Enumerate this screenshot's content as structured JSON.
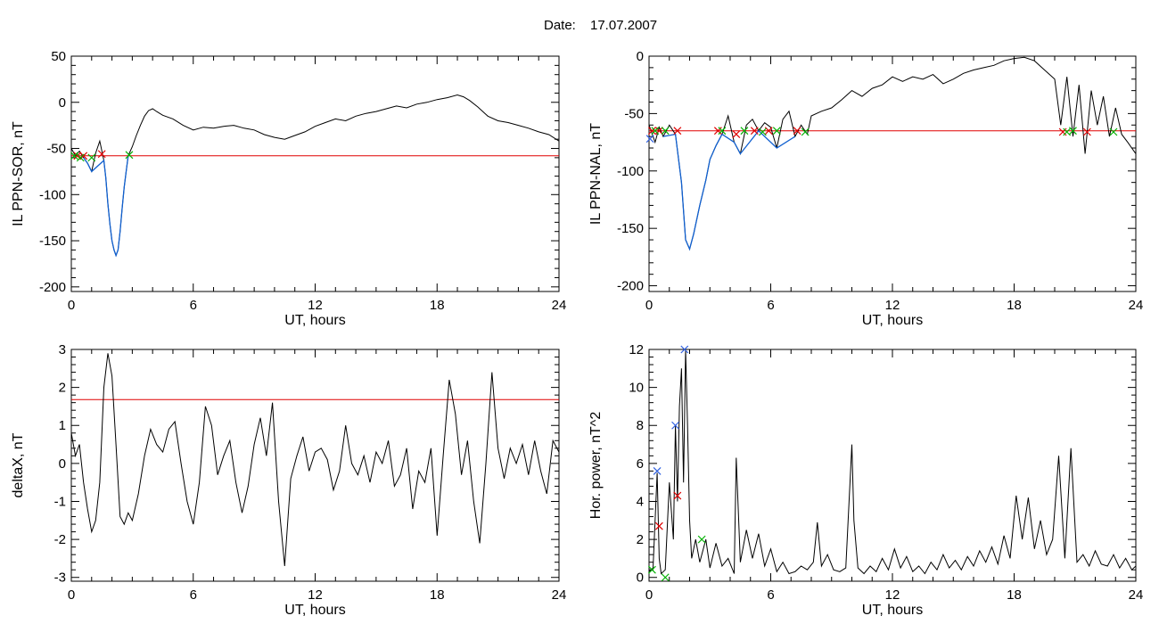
{
  "header": {
    "date_label": "Date:",
    "date_value": "17.07.2007"
  },
  "colors": {
    "trace": "#000000",
    "threshold": "#e00000",
    "highlight": "#1060d0",
    "marker_red": "#e00000",
    "marker_green": "#00b000",
    "marker_blue": "#3060e0"
  },
  "chart_data": [
    {
      "id": "ppn-sor",
      "type": "line",
      "title": "",
      "xlabel": "UT, hours",
      "ylabel": "IL PPN-SOR, nT",
      "xlim": [
        0,
        24
      ],
      "ylim": [
        -205,
        50
      ],
      "xticks": [
        0,
        6,
        12,
        18,
        24
      ],
      "yticks": [
        -200,
        -150,
        -100,
        -50,
        0,
        50
      ],
      "threshold": -58,
      "highlight_range": [
        0.3,
        2.8
      ],
      "series": [
        {
          "x": [
            0,
            0.2,
            0.4,
            0.6,
            0.8,
            1.0,
            1.2,
            1.4,
            1.6,
            1.7,
            1.8,
            1.9,
            2.0,
            2.1,
            2.2,
            2.3,
            2.4,
            2.5,
            2.6,
            2.7,
            2.8,
            3.0,
            3.2,
            3.4,
            3.6,
            3.8,
            4.0,
            4.2,
            4.5,
            5.0,
            5.5,
            6.0,
            6.5,
            7.0,
            7.5,
            8.0,
            8.5,
            9.0,
            9.5,
            10.0,
            10.5,
            11.0,
            11.5,
            12.0,
            12.5,
            13.0,
            13.5,
            14.0,
            14.5,
            15.0,
            15.5,
            16.0,
            16.5,
            17.0,
            17.5,
            18.0,
            18.5,
            19.0,
            19.3,
            19.6,
            20.0,
            20.5,
            21.0,
            21.5,
            22.0,
            22.5,
            23.0,
            23.5,
            24.0
          ],
          "values": [
            -50,
            -58,
            -53,
            -60,
            -66,
            -75,
            -55,
            -42,
            -63,
            -82,
            -110,
            -132,
            -150,
            -160,
            -166,
            -160,
            -140,
            -115,
            -92,
            -75,
            -58,
            -48,
            -36,
            -25,
            -15,
            -9,
            -7,
            -10,
            -14,
            -18,
            -25,
            -30,
            -27,
            -28,
            -26,
            -25,
            -28,
            -30,
            -35,
            -38,
            -40,
            -36,
            -32,
            -26,
            -22,
            -18,
            -20,
            -15,
            -12,
            -10,
            -7,
            -4,
            -6,
            -2,
            0,
            3,
            5,
            8,
            6,
            2,
            -5,
            -15,
            -20,
            -22,
            -25,
            -28,
            -32,
            -35,
            -42
          ]
        }
      ],
      "markers": [
        {
          "color": "red",
          "x": [
            0.3,
            0.6,
            1.5
          ],
          "values": [
            -58,
            -58,
            -56
          ]
        },
        {
          "color": "green",
          "x": [
            0.15,
            0.45,
            1.0,
            2.85
          ],
          "values": [
            -58,
            -60,
            -60,
            -57
          ]
        }
      ]
    },
    {
      "id": "ppn-nal",
      "type": "line",
      "title": "",
      "xlabel": "UT, hours",
      "ylabel": "IL PPN-NAL, nT",
      "xlim": [
        0,
        24
      ],
      "ylim": [
        -205,
        0
      ],
      "xticks": [
        0,
        6,
        12,
        18,
        24
      ],
      "yticks": [
        -200,
        -150,
        -100,
        -50,
        0
      ],
      "threshold": -65,
      "highlight_range": [
        0.5,
        7.5
      ],
      "series": [
        {
          "x": [
            0,
            0.3,
            0.5,
            0.7,
            1.0,
            1.3,
            1.6,
            1.8,
            2.0,
            2.2,
            2.5,
            2.8,
            3.0,
            3.3,
            3.6,
            3.9,
            4.2,
            4.5,
            4.8,
            5.1,
            5.4,
            5.7,
            6.0,
            6.3,
            6.6,
            6.9,
            7.2,
            7.5,
            7.8,
            8.0,
            8.5,
            9.0,
            9.5,
            10.0,
            10.5,
            11.0,
            11.5,
            12.0,
            12.5,
            13.0,
            13.5,
            14.0,
            14.5,
            15.0,
            15.5,
            16.0,
            16.5,
            17.0,
            17.5,
            18.0,
            18.5,
            19.0,
            19.5,
            20.0,
            20.3,
            20.6,
            20.9,
            21.2,
            21.5,
            21.8,
            22.1,
            22.4,
            22.7,
            23.0,
            23.3,
            23.6,
            24.0
          ],
          "values": [
            -60,
            -75,
            -62,
            -70,
            -60,
            -68,
            -110,
            -160,
            -168,
            -155,
            -130,
            -108,
            -90,
            -78,
            -68,
            -52,
            -75,
            -85,
            -60,
            -55,
            -65,
            -58,
            -62,
            -80,
            -55,
            -48,
            -70,
            -60,
            -68,
            -52,
            -48,
            -45,
            -38,
            -30,
            -35,
            -28,
            -25,
            -18,
            -22,
            -18,
            -20,
            -16,
            -24,
            -20,
            -15,
            -12,
            -10,
            -8,
            -4,
            -2,
            -1,
            -4,
            -12,
            -20,
            -60,
            -18,
            -70,
            -25,
            -85,
            -30,
            -60,
            -35,
            -70,
            -45,
            -68,
            -75,
            -85
          ]
        }
      ],
      "markers": [
        {
          "color": "red",
          "x": [
            0.15,
            0.5,
            1.4,
            3.4,
            4.3,
            5.2,
            5.9,
            7.3,
            20.4,
            21.6
          ],
          "values": [
            -65,
            -65,
            -65,
            -65,
            -68,
            -65,
            -65,
            -65,
            -66,
            -66
          ]
        },
        {
          "color": "green",
          "x": [
            0.3,
            0.8,
            3.6,
            4.7,
            5.6,
            6.3,
            7.7,
            20.6,
            20.9,
            22.9
          ],
          "values": [
            -65,
            -65,
            -65,
            -65,
            -66,
            -65,
            -66,
            -66,
            -65,
            -66
          ]
        },
        {
          "color": "blue",
          "x": [
            0.05
          ],
          "values": [
            -72
          ]
        }
      ]
    },
    {
      "id": "deltax",
      "type": "line",
      "title": "",
      "xlabel": "UT, hours",
      "ylabel": "deltaX, nT",
      "xlim": [
        0,
        24
      ],
      "ylim": [
        -3.1,
        3.0
      ],
      "xticks": [
        0,
        6,
        12,
        18,
        24
      ],
      "yticks": [
        -3,
        -2,
        -1,
        0,
        1,
        2,
        3
      ],
      "threshold": 1.68,
      "series": [
        {
          "x": [
            0,
            0.2,
            0.4,
            0.6,
            0.8,
            1.0,
            1.2,
            1.4,
            1.6,
            1.8,
            2.0,
            2.2,
            2.4,
            2.6,
            2.8,
            3.0,
            3.3,
            3.6,
            3.9,
            4.2,
            4.5,
            4.8,
            5.1,
            5.4,
            5.7,
            6.0,
            6.3,
            6.6,
            6.9,
            7.2,
            7.5,
            7.8,
            8.1,
            8.4,
            8.7,
            9.0,
            9.3,
            9.6,
            9.9,
            10.2,
            10.5,
            10.8,
            11.1,
            11.4,
            11.7,
            12.0,
            12.3,
            12.6,
            12.9,
            13.2,
            13.5,
            13.8,
            14.1,
            14.4,
            14.7,
            15.0,
            15.3,
            15.6,
            15.9,
            16.2,
            16.5,
            16.8,
            17.1,
            17.4,
            17.7,
            18.0,
            18.3,
            18.6,
            18.9,
            19.2,
            19.5,
            19.8,
            20.1,
            20.4,
            20.7,
            21.0,
            21.3,
            21.6,
            21.9,
            22.2,
            22.5,
            22.8,
            23.1,
            23.4,
            23.7,
            24.0
          ],
          "values": [
            0.8,
            0.2,
            0.5,
            -0.5,
            -1.2,
            -1.8,
            -1.5,
            -0.5,
            2.0,
            2.9,
            2.3,
            0.5,
            -1.4,
            -1.6,
            -1.3,
            -1.5,
            -0.8,
            0.2,
            0.9,
            0.5,
            0.3,
            0.9,
            1.1,
            0.0,
            -1.0,
            -1.6,
            -0.5,
            1.5,
            1.0,
            -0.3,
            0.2,
            0.6,
            -0.5,
            -1.3,
            -0.6,
            0.5,
            1.2,
            0.2,
            1.6,
            -1.0,
            -2.7,
            -0.4,
            0.2,
            0.7,
            -0.2,
            0.3,
            0.4,
            0.1,
            -0.7,
            -0.2,
            1.0,
            0.0,
            -0.3,
            0.2,
            -0.5,
            0.3,
            0.0,
            0.6,
            -0.6,
            -0.3,
            0.4,
            -1.2,
            -0.2,
            -0.5,
            0.4,
            -1.9,
            0.2,
            2.2,
            1.3,
            -0.3,
            0.6,
            -1.0,
            -2.1,
            0.0,
            2.4,
            0.4,
            -0.4,
            0.4,
            0.0,
            0.5,
            -0.3,
            0.6,
            -0.2,
            -0.8,
            0.6,
            0.3
          ]
        }
      ]
    },
    {
      "id": "hor-power",
      "type": "line",
      "title": "",
      "xlabel": "UT, hours",
      "ylabel": "Hor. power, nT^2",
      "xlim": [
        0,
        24
      ],
      "ylim": [
        -0.2,
        12
      ],
      "xticks": [
        0,
        6,
        12,
        18,
        24
      ],
      "yticks": [
        0,
        2,
        4,
        6,
        8,
        10,
        12
      ],
      "series": [
        {
          "x": [
            0,
            0.2,
            0.4,
            0.5,
            0.6,
            0.8,
            1.0,
            1.2,
            1.3,
            1.4,
            1.5,
            1.6,
            1.7,
            1.8,
            1.9,
            2.0,
            2.1,
            2.3,
            2.5,
            2.8,
            3.0,
            3.3,
            3.6,
            3.9,
            4.2,
            4.3,
            4.5,
            4.8,
            5.1,
            5.4,
            5.7,
            6.0,
            6.3,
            6.6,
            6.9,
            7.2,
            7.5,
            7.8,
            8.1,
            8.3,
            8.5,
            8.8,
            9.1,
            9.4,
            9.7,
            10.0,
            10.1,
            10.3,
            10.6,
            10.9,
            11.2,
            11.5,
            11.8,
            12.1,
            12.4,
            12.7,
            13.0,
            13.3,
            13.6,
            13.9,
            14.2,
            14.5,
            14.8,
            15.1,
            15.4,
            15.7,
            16.0,
            16.3,
            16.6,
            16.9,
            17.2,
            17.5,
            17.8,
            18.1,
            18.4,
            18.7,
            19.0,
            19.3,
            19.6,
            19.9,
            20.2,
            20.5,
            20.8,
            21.1,
            21.4,
            21.7,
            22.0,
            22.3,
            22.6,
            22.9,
            23.2,
            23.5,
            23.8,
            24.0
          ],
          "values": [
            0.3,
            0.5,
            5.5,
            1.0,
            0.2,
            0.4,
            5.0,
            2.0,
            8.0,
            4.0,
            9.0,
            11.0,
            5.0,
            12.0,
            8.0,
            3.0,
            1.0,
            2.0,
            0.8,
            2.0,
            0.5,
            1.8,
            0.6,
            1.0,
            0.2,
            6.3,
            0.8,
            2.5,
            1.0,
            2.3,
            0.6,
            1.5,
            0.3,
            0.8,
            0.2,
            0.3,
            0.6,
            0.4,
            0.8,
            2.9,
            0.6,
            1.2,
            0.4,
            0.3,
            0.5,
            7.0,
            3.0,
            0.5,
            0.2,
            0.6,
            0.3,
            1.0,
            0.4,
            1.5,
            0.5,
            1.1,
            0.3,
            0.6,
            0.2,
            0.8,
            0.4,
            1.2,
            0.5,
            0.9,
            0.4,
            1.1,
            0.6,
            1.4,
            0.8,
            1.6,
            0.7,
            2.2,
            1.0,
            4.3,
            2.0,
            4.2,
            1.5,
            3.0,
            1.2,
            2.0,
            6.4,
            1.0,
            6.8,
            0.8,
            1.2,
            0.6,
            1.4,
            0.7,
            0.6,
            1.2,
            0.5,
            1.0,
            0.4,
            0.6
          ]
        }
      ],
      "markers": [
        {
          "color": "blue",
          "x": [
            0.4,
            1.3,
            1.75
          ],
          "values": [
            5.6,
            8.0,
            12.0
          ]
        },
        {
          "color": "red",
          "x": [
            0.5,
            1.4
          ],
          "values": [
            2.7,
            4.3
          ]
        },
        {
          "color": "green",
          "x": [
            0.15,
            0.8,
            2.6
          ],
          "values": [
            0.4,
            0.0,
            2.0
          ]
        }
      ]
    }
  ]
}
